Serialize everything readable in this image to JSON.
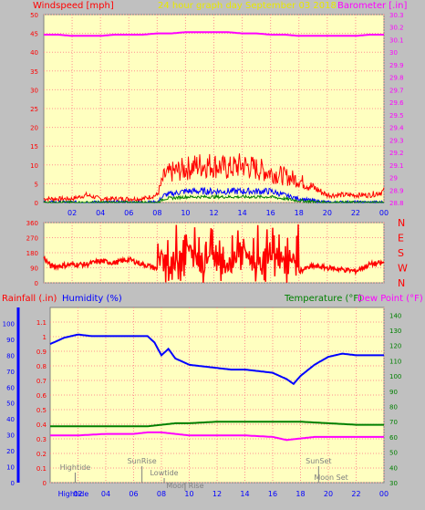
{
  "header": {
    "left_label": "Windspeed [mph]",
    "center_label": "24 hour graph day   September 03 2018",
    "right_label": "Barometer [.in]"
  },
  "bottom_header": {
    "rainfall_label": "Rainfall (.in)",
    "humidity_label": "Humidity (%)",
    "temperature_label": "Temperature (°F)",
    "dewpoint_label": "Dew Point (°F)"
  },
  "colors": {
    "plot_bg": "#ffffc0",
    "wind": "#ff0000",
    "gust_blue": "#0000ff",
    "gust_green": "#008000",
    "barometer": "#ff00ff",
    "humidity": "#0000ff",
    "temperature": "#008000",
    "dewpoint": "#ff00ff",
    "grid": "#ff9090",
    "axis_left": "#ff0000",
    "axis_right": "#ff00ff"
  },
  "chart_data": [
    {
      "type": "line",
      "xlabel": "",
      "ylabel": "Windspeed [mph]",
      "y2label": "Barometer [.in]",
      "x_ticks": [
        "02",
        "04",
        "06",
        "08",
        "10",
        "12",
        "14",
        "16",
        "18",
        "20",
        "22",
        "00"
      ],
      "ylim": [
        0,
        50
      ],
      "y_ticks": [
        0,
        5,
        10,
        15,
        20,
        25,
        30,
        35,
        40,
        45,
        50
      ],
      "y2lim": [
        28.8,
        30.3
      ],
      "y2_ticks": [
        "28.8",
        "28.9",
        "29",
        "29.1",
        "29.2",
        "29.3",
        "29.4",
        "29.5",
        "29.6",
        "29.7",
        "29.8",
        "29.9",
        "30",
        "30.1",
        "30.2",
        "30.3"
      ],
      "series": [
        {
          "name": "Barometer [.in]",
          "color": "#ff00ff",
          "x": [
            0,
            1,
            2,
            3,
            4,
            5,
            6,
            7,
            8,
            9,
            10,
            11,
            12,
            13,
            14,
            15,
            16,
            17,
            18,
            19,
            20,
            21,
            22,
            23,
            24
          ],
          "values": [
            30.14,
            30.14,
            30.13,
            30.13,
            30.13,
            30.14,
            30.14,
            30.14,
            30.15,
            30.15,
            30.16,
            30.16,
            30.16,
            30.16,
            30.15,
            30.15,
            30.14,
            30.14,
            30.13,
            30.13,
            30.13,
            30.13,
            30.13,
            30.14,
            30.14
          ]
        },
        {
          "name": "Windspeed [mph]",
          "color": "#ff0000",
          "x": [
            0,
            1,
            2,
            3,
            4,
            5,
            6,
            7,
            8,
            8.5,
            9,
            10,
            11,
            12,
            13,
            14,
            15,
            16,
            17,
            18,
            19,
            20,
            21,
            22,
            23,
            24
          ],
          "values": [
            1,
            1,
            1,
            2,
            1,
            1,
            1,
            1,
            2,
            7,
            8,
            9,
            10,
            10,
            9,
            10,
            9,
            8,
            7,
            6,
            4,
            2,
            2,
            2,
            2,
            3
          ]
        },
        {
          "name": "Wind average",
          "color": "#0000ff",
          "x": [
            0,
            4,
            8,
            8.5,
            10,
            12,
            14,
            16,
            17,
            18,
            20,
            22,
            24
          ],
          "values": [
            0,
            0,
            0,
            2,
            3,
            3,
            3,
            3,
            2,
            1,
            0,
            0,
            0
          ]
        },
        {
          "name": "Wind calm",
          "color": "#008000",
          "x": [
            0,
            8,
            8.5,
            10,
            12,
            14,
            16,
            18,
            20,
            24
          ],
          "values": [
            0,
            0,
            1,
            1.5,
            1.5,
            1.5,
            1.5,
            0.5,
            0,
            0
          ]
        }
      ]
    },
    {
      "type": "line",
      "ylabel": "Wind direction",
      "ylim": [
        0,
        360
      ],
      "y_ticks": [
        0,
        90,
        180,
        270,
        360
      ],
      "y2_ticks": [
        "N",
        "W",
        "S",
        "E",
        "N"
      ],
      "series": [
        {
          "name": "Wind direction",
          "color": "#ff0000",
          "x": [
            0,
            0.5,
            1,
            2,
            3,
            4,
            5,
            6,
            7,
            7.5,
            8,
            8.5,
            9,
            10,
            11,
            12,
            13,
            14,
            15,
            16,
            17,
            18,
            19,
            20,
            21,
            22,
            23,
            24
          ],
          "values": [
            150,
            100,
            100,
            110,
            110,
            130,
            120,
            140,
            110,
            100,
            80,
            180,
            60,
            240,
            80,
            200,
            90,
            220,
            80,
            190,
            110,
            70,
            100,
            90,
            80,
            70,
            110,
            120
          ]
        }
      ]
    },
    {
      "type": "line",
      "x_ticks": [
        "02",
        "04",
        "06",
        "08",
        "10",
        "12",
        "14",
        "16",
        "18",
        "20",
        "22",
        "00"
      ],
      "ylabel": "Rainfall (.in)",
      "ylim": [
        0,
        1.2
      ],
      "y_ticks": [
        "0",
        "0.1",
        "0.2",
        "0.3",
        "0.4",
        "0.5",
        "0.6",
        "0.7",
        "0.8",
        "0.9",
        "1",
        "1.1"
      ],
      "y_ticks_humidity": [
        "0",
        "10",
        "20",
        "30",
        "40",
        "50",
        "60",
        "70",
        "80",
        "90",
        "100"
      ],
      "y2lim": [
        30,
        145
      ],
      "y2_ticks": [
        "30",
        "40",
        "50",
        "60",
        "70",
        "80",
        "90",
        "100",
        "110",
        "120",
        "130",
        "140"
      ],
      "series": [
        {
          "name": "Humidity (%)",
          "color": "#0000ff",
          "x": [
            0,
            1,
            2,
            3,
            4,
            5,
            6,
            7,
            7.5,
            8,
            8.5,
            9,
            10,
            11,
            12,
            13,
            14,
            15,
            16,
            17,
            17.5,
            18,
            19,
            20,
            21,
            22,
            23,
            24
          ],
          "values": [
            87,
            91,
            93,
            92,
            92,
            92,
            92,
            92,
            88,
            80,
            84,
            78,
            74,
            73,
            72,
            71,
            71,
            70,
            69,
            65,
            62,
            67,
            74,
            79,
            81,
            80,
            80,
            80
          ]
        },
        {
          "name": "Temperature (°F)",
          "color": "#008000",
          "x": [
            0,
            2,
            4,
            6,
            7,
            8,
            9,
            10,
            12,
            14,
            16,
            18,
            20,
            22,
            24
          ],
          "values": [
            67,
            67,
            67,
            67,
            67,
            68,
            69,
            69,
            70,
            70,
            70,
            70,
            69,
            68,
            68
          ]
        },
        {
          "name": "Dew Point (°F)",
          "color": "#ff00ff",
          "x": [
            0,
            2,
            4,
            6,
            7,
            8,
            9,
            10,
            12,
            14,
            16,
            17,
            18,
            19,
            20,
            22,
            24
          ],
          "values": [
            61,
            61,
            62,
            62,
            63,
            63,
            62,
            61,
            61,
            61,
            60,
            58,
            59,
            60,
            60,
            60,
            60
          ]
        }
      ],
      "annotations": [
        {
          "label": "Hightide",
          "x": 1.8
        },
        {
          "label": "SunRise",
          "x": 6.6
        },
        {
          "label": "Lowtide",
          "x": 8.2
        },
        {
          "label": "Moon Rise",
          "x": 9.7
        },
        {
          "label": "SunSet",
          "x": 19.3
        },
        {
          "label": "Moon Set",
          "x": 20.2
        },
        {
          "label": "Hightide",
          "x": 1.8,
          "position": "axis"
        }
      ]
    }
  ]
}
